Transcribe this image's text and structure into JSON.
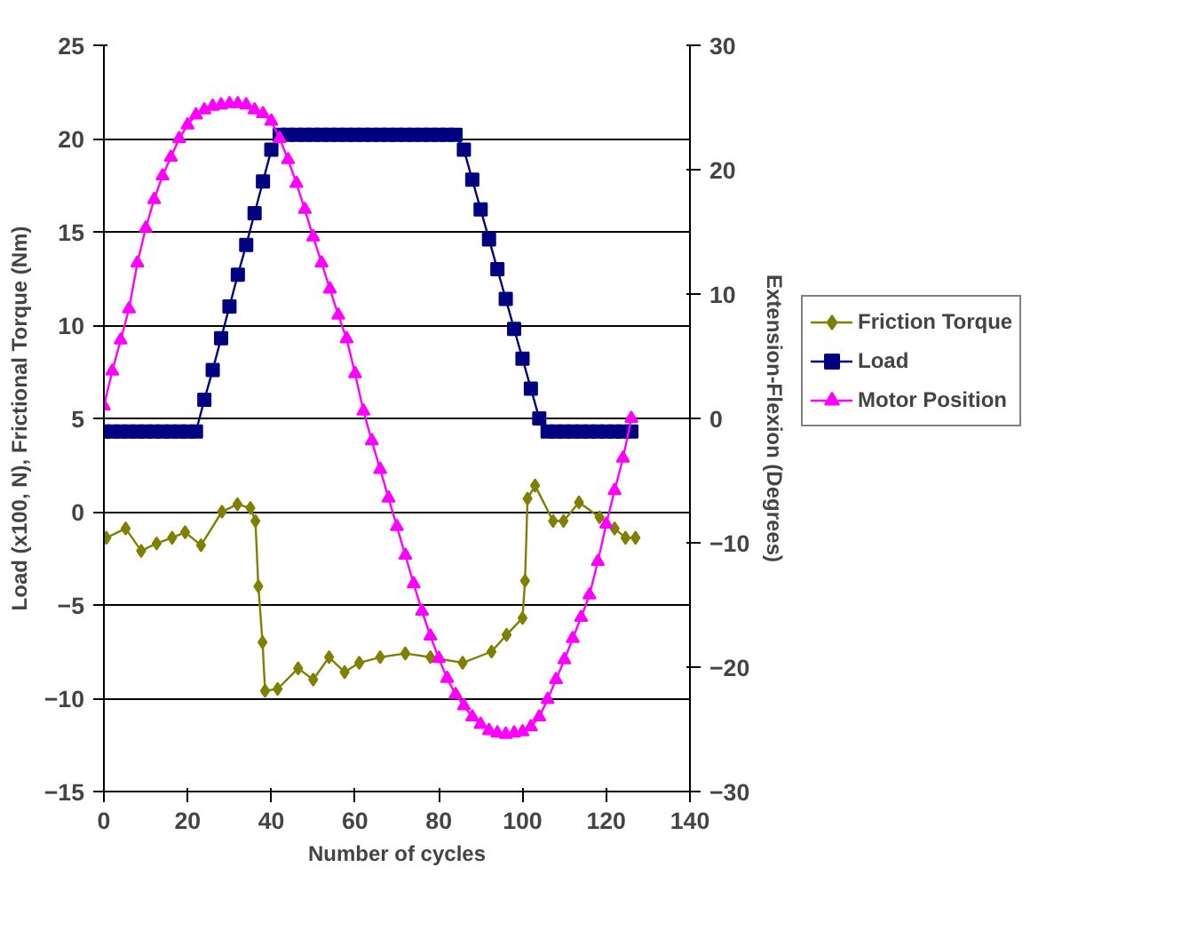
{
  "chart_data": {
    "type": "line",
    "xlabel": "Number of cycles",
    "ylabel": "Load (x100, N), Frictional Torque (Nm)",
    "y2label": "Extension-Flexion (Degrees)",
    "x": [
      0,
      2,
      4,
      6,
      8,
      10,
      12,
      14,
      16,
      18,
      20,
      22,
      24,
      26,
      28,
      30,
      32,
      34,
      36,
      38,
      40,
      42,
      44,
      46,
      48,
      50,
      52,
      54,
      56,
      58,
      60,
      62,
      64,
      66,
      68,
      70,
      72,
      74,
      76,
      78,
      80,
      82,
      84,
      86,
      88,
      90,
      92,
      94,
      96,
      98,
      100,
      102,
      104,
      106,
      108,
      110,
      112,
      114,
      116,
      118,
      120,
      122,
      124,
      126
    ],
    "xlim": [
      0,
      140
    ],
    "xticks": [
      0,
      20,
      40,
      60,
      80,
      100,
      120,
      140
    ],
    "ylim": [
      -15,
      25
    ],
    "yticks": [
      -15,
      -10,
      -5,
      0,
      5,
      10,
      15,
      20,
      25
    ],
    "y2lim": [
      -30,
      30
    ],
    "y2ticks": [
      -30,
      -20,
      -10,
      0,
      10,
      20,
      30
    ],
    "grid": "y",
    "legend": "right",
    "line_style": "solid",
    "series": [
      {
        "name": "Friction Torque",
        "color": "#808000",
        "marker": "diamond",
        "x": [
          0.6,
          5.2,
          8.9,
          12.6,
          16.3,
          19.4,
          23.2,
          28.2,
          31.9,
          35,
          36.2,
          36.9,
          37.9,
          38.5,
          41.5,
          46.4,
          50,
          53.8,
          57.5,
          61,
          66,
          72,
          78,
          85.7,
          92.6,
          96.2,
          100,
          100.6,
          101.2,
          103,
          107.3,
          109.8,
          113.5,
          118.4,
          122,
          124.6,
          127
        ],
        "values": [
          -1.4,
          -0.9,
          -2.1,
          -1.7,
          -1.4,
          -1.1,
          -1.8,
          0,
          0.4,
          0.2,
          -0.5,
          -4,
          -7,
          -9.6,
          -9.5,
          -8.4,
          -9,
          -7.8,
          -8.6,
          -8.1,
          -7.8,
          -7.6,
          -7.8,
          -8.1,
          -7.5,
          -6.6,
          -5.7,
          -3.7,
          0.7,
          1.4,
          -0.5,
          -0.5,
          0.5,
          -0.3,
          -0.9,
          -1.4,
          -1.4
        ]
      },
      {
        "name": "Load",
        "color": "#000080",
        "marker": "square",
        "values": [
          4.3,
          4.3,
          4.3,
          4.3,
          4.3,
          4.3,
          4.3,
          4.3,
          4.3,
          4.3,
          4.3,
          4.3,
          6.0,
          7.6,
          9.3,
          11.0,
          12.7,
          14.3,
          16.0,
          17.7,
          19.4,
          20.2,
          20.2,
          20.2,
          20.2,
          20.2,
          20.2,
          20.2,
          20.2,
          20.2,
          20.2,
          20.2,
          20.2,
          20.2,
          20.2,
          20.2,
          20.2,
          20.2,
          20.2,
          20.2,
          20.2,
          20.2,
          20.2,
          19.4,
          17.8,
          16.2,
          14.6,
          13.0,
          11.4,
          9.8,
          8.2,
          6.6,
          5.0,
          4.3,
          4.3,
          4.3,
          4.3,
          4.3,
          4.3,
          4.3,
          4.3,
          4.3,
          4.3,
          4.3
        ]
      },
      {
        "name": "Motor Position",
        "color": "#ff00ff",
        "marker": "triangle",
        "axis": "y2",
        "values": [
          1,
          3.8,
          6.3,
          8.8,
          12.5,
          15.3,
          17.6,
          19.5,
          21,
          22.5,
          23.6,
          24.4,
          24.8,
          25.1,
          25.2,
          25.3,
          25.3,
          25.2,
          24.8,
          24.5,
          23.9,
          22.5,
          20.8,
          18.9,
          16.8,
          14.6,
          12.5,
          10.4,
          8.3,
          6.4,
          3.6,
          0.6,
          -1.8,
          -4.1,
          -6.4,
          -8.7,
          -11,
          -13.3,
          -15.5,
          -17.5,
          -19.3,
          -20.9,
          -22.2,
          -23.1,
          -24,
          -24.6,
          -25.1,
          -25.3,
          -25.4,
          -25.3,
          -25.2,
          -24.8,
          -24,
          -22.6,
          -21,
          -19.4,
          -17.7,
          -16,
          -14.2,
          -11.5,
          -8.5,
          -5.8,
          -3.2,
          0
        ]
      }
    ]
  }
}
